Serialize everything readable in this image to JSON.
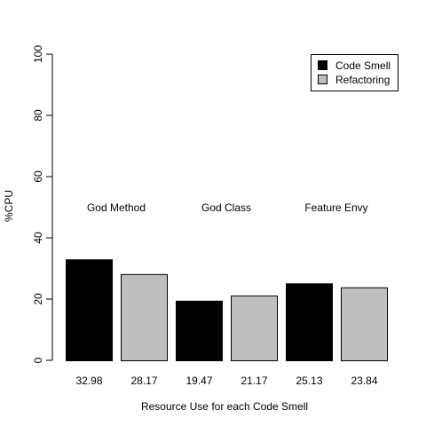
{
  "chart_data": {
    "type": "bar",
    "title": "",
    "xlabel": "Resource Use for each Code Smell",
    "ylabel": "%CPU",
    "ylim": [
      0,
      100
    ],
    "yticks": [
      0,
      20,
      40,
      60,
      80,
      100
    ],
    "groups": [
      "God Method",
      "God Class",
      "Feature Envy"
    ],
    "series": [
      {
        "name": "Code Smell",
        "color": "#000000"
      },
      {
        "name": "Refactoring",
        "color": "#bebebe"
      }
    ],
    "bars": [
      {
        "group": "God Method",
        "series": "Code Smell",
        "value": 32.98,
        "label": "32.98"
      },
      {
        "group": "God Method",
        "series": "Refactoring",
        "value": 28.17,
        "label": "28.17"
      },
      {
        "group": "God Class",
        "series": "Code Smell",
        "value": 19.47,
        "label": "19.47"
      },
      {
        "group": "God Class",
        "series": "Refactoring",
        "value": 21.17,
        "label": "21.17"
      },
      {
        "group": "Feature Envy",
        "series": "Code Smell",
        "value": 25.13,
        "label": "25.13"
      },
      {
        "group": "Feature Envy",
        "series": "Refactoring",
        "value": 23.84,
        "label": "23.84"
      }
    ],
    "grid": false,
    "legend": {
      "placement": "top-right"
    }
  }
}
